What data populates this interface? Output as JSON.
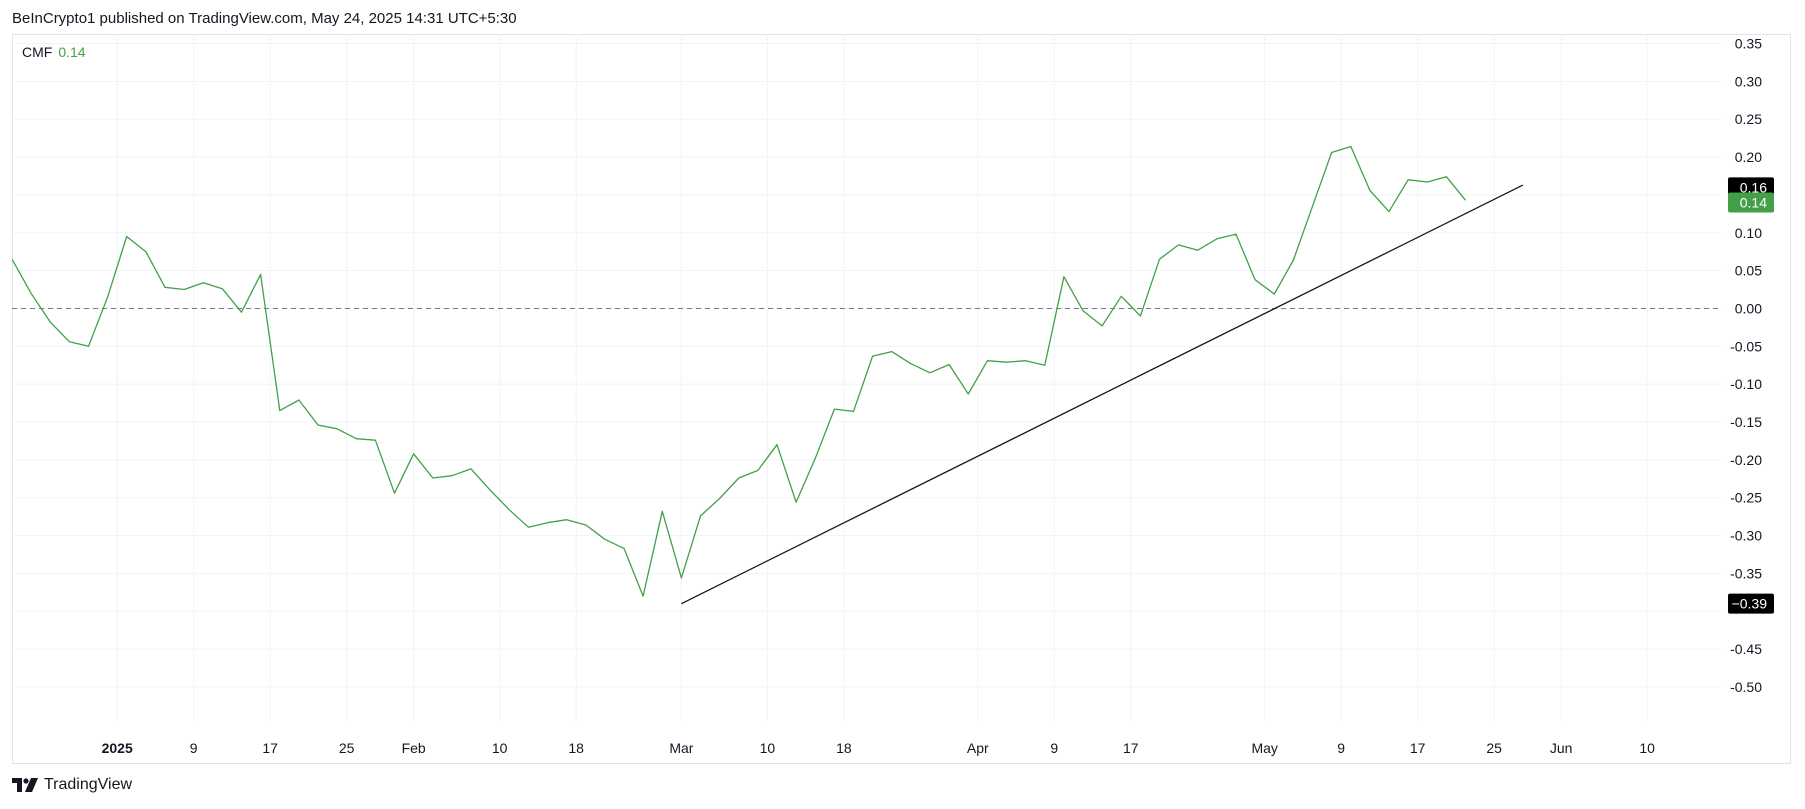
{
  "header": {
    "published": "BeInCrypto1 published on TradingView.com, May 24, 2025 14:31 UTC+5:30"
  },
  "legend": {
    "name": "CMF",
    "value": "0.14"
  },
  "footer": {
    "brand": "TradingView",
    "logo_icon": "tradingview-logo-icon"
  },
  "colors": {
    "series": "#43a047",
    "trendline": "#131722",
    "grid": "#f0f3fa",
    "zero_line": "#787b86",
    "axis_text": "#131722",
    "badge_dark": "#000000",
    "badge_green": "#43a047"
  },
  "chart_data": {
    "type": "line",
    "title": "",
    "xlabel": "",
    "ylabel": "",
    "ylim": [
      -0.55,
      0.36
    ],
    "grid": true,
    "y_ticks": [
      "0.35",
      "0.30",
      "0.25",
      "0.20",
      "0.15",
      "0.10",
      "0.05",
      "0.00",
      "-0.05",
      "-0.10",
      "-0.15",
      "-0.20",
      "-0.25",
      "-0.30",
      "-0.35",
      "-0.45",
      "-0.50"
    ],
    "y_tick_values": [
      0.35,
      0.3,
      0.25,
      0.2,
      0.15,
      0.1,
      0.05,
      0.0,
      -0.05,
      -0.1,
      -0.15,
      -0.2,
      -0.25,
      -0.3,
      -0.35,
      -0.45,
      -0.5
    ],
    "x_range": [
      "2024-12-21",
      "2025-06-15"
    ],
    "x_ticks": [
      {
        "date": "2025-01-01",
        "label": "2025",
        "bold": true
      },
      {
        "date": "2025-01-09",
        "label": "9"
      },
      {
        "date": "2025-01-17",
        "label": "17"
      },
      {
        "date": "2025-01-25",
        "label": "25"
      },
      {
        "date": "2025-02-01",
        "label": "Feb"
      },
      {
        "date": "2025-02-10",
        "label": "10"
      },
      {
        "date": "2025-02-18",
        "label": "18"
      },
      {
        "date": "2025-03-01",
        "label": "Mar"
      },
      {
        "date": "2025-03-10",
        "label": "10"
      },
      {
        "date": "2025-03-18",
        "label": "18"
      },
      {
        "date": "2025-04-01",
        "label": "Apr"
      },
      {
        "date": "2025-04-09",
        "label": "9"
      },
      {
        "date": "2025-04-17",
        "label": "17"
      },
      {
        "date": "2025-05-01",
        "label": "May"
      },
      {
        "date": "2025-05-09",
        "label": "9"
      },
      {
        "date": "2025-05-17",
        "label": "17"
      },
      {
        "date": "2025-05-25",
        "label": "25"
      },
      {
        "date": "2025-06-01",
        "label": "Jun"
      },
      {
        "date": "2025-06-10",
        "label": "10"
      }
    ],
    "series": [
      {
        "name": "CMF",
        "color": "#43a047",
        "x": [
          "2024-12-21",
          "2024-12-23",
          "2024-12-25",
          "2024-12-27",
          "2024-12-29",
          "2024-12-31",
          "2025-01-02",
          "2025-01-04",
          "2025-01-06",
          "2025-01-08",
          "2025-01-10",
          "2025-01-12",
          "2025-01-14",
          "2025-01-16",
          "2025-01-18",
          "2025-01-20",
          "2025-01-22",
          "2025-01-24",
          "2025-01-26",
          "2025-01-28",
          "2025-01-30",
          "2025-02-01",
          "2025-02-03",
          "2025-02-05",
          "2025-02-07",
          "2025-02-09",
          "2025-02-11",
          "2025-02-13",
          "2025-02-15",
          "2025-02-17",
          "2025-02-19",
          "2025-02-21",
          "2025-02-23",
          "2025-02-25",
          "2025-02-27",
          "2025-03-01",
          "2025-03-03",
          "2025-03-05",
          "2025-03-07",
          "2025-03-09",
          "2025-03-11",
          "2025-03-13",
          "2025-03-15",
          "2025-03-17",
          "2025-03-19",
          "2025-03-21",
          "2025-03-23",
          "2025-03-25",
          "2025-03-27",
          "2025-03-29",
          "2025-03-31",
          "2025-04-02",
          "2025-04-04",
          "2025-04-06",
          "2025-04-08",
          "2025-04-10",
          "2025-04-12",
          "2025-04-14",
          "2025-04-16",
          "2025-04-18",
          "2025-04-20",
          "2025-04-22",
          "2025-04-24",
          "2025-04-26",
          "2025-04-28",
          "2025-04-30",
          "2025-05-02",
          "2025-05-04",
          "2025-05-06",
          "2025-05-08",
          "2025-05-10",
          "2025-05-12",
          "2025-05-14",
          "2025-05-16",
          "2025-05-18",
          "2025-05-20",
          "2025-05-22"
        ],
        "values": [
          0.065,
          0.02,
          -0.018,
          -0.044,
          -0.05,
          0.015,
          0.095,
          0.075,
          0.028,
          0.025,
          0.034,
          0.026,
          -0.005,
          0.045,
          -0.135,
          -0.121,
          -0.154,
          -0.159,
          -0.172,
          -0.174,
          -0.244,
          -0.192,
          -0.224,
          -0.221,
          -0.212,
          -0.24,
          -0.266,
          -0.289,
          -0.283,
          -0.279,
          -0.286,
          -0.305,
          -0.317,
          -0.38,
          -0.268,
          -0.356,
          -0.274,
          -0.251,
          -0.224,
          -0.214,
          -0.18,
          -0.256,
          -0.198,
          -0.133,
          -0.136,
          -0.063,
          -0.057,
          -0.073,
          -0.085,
          -0.074,
          -0.113,
          -0.069,
          -0.071,
          -0.069,
          -0.075,
          0.042,
          -0.003,
          -0.023,
          0.016,
          -0.01,
          0.065,
          0.084,
          0.077,
          0.092,
          0.098,
          0.038,
          0.019,
          0.064,
          0.135,
          0.206,
          0.214,
          0.156,
          0.128,
          0.17,
          0.167,
          0.174,
          0.143
        ]
      }
    ],
    "trendline": {
      "x": [
        "2025-03-01",
        "2025-05-28"
      ],
      "y": [
        -0.39,
        0.163
      ]
    },
    "reference_line": {
      "y": 0.0,
      "style": "dashed"
    },
    "price_labels": [
      {
        "value": 0.16,
        "text": "0.16",
        "style": "dark"
      },
      {
        "value": 0.14,
        "text": "0.14",
        "style": "green"
      },
      {
        "value": -0.39,
        "text": "−0.39",
        "style": "dark"
      }
    ]
  }
}
